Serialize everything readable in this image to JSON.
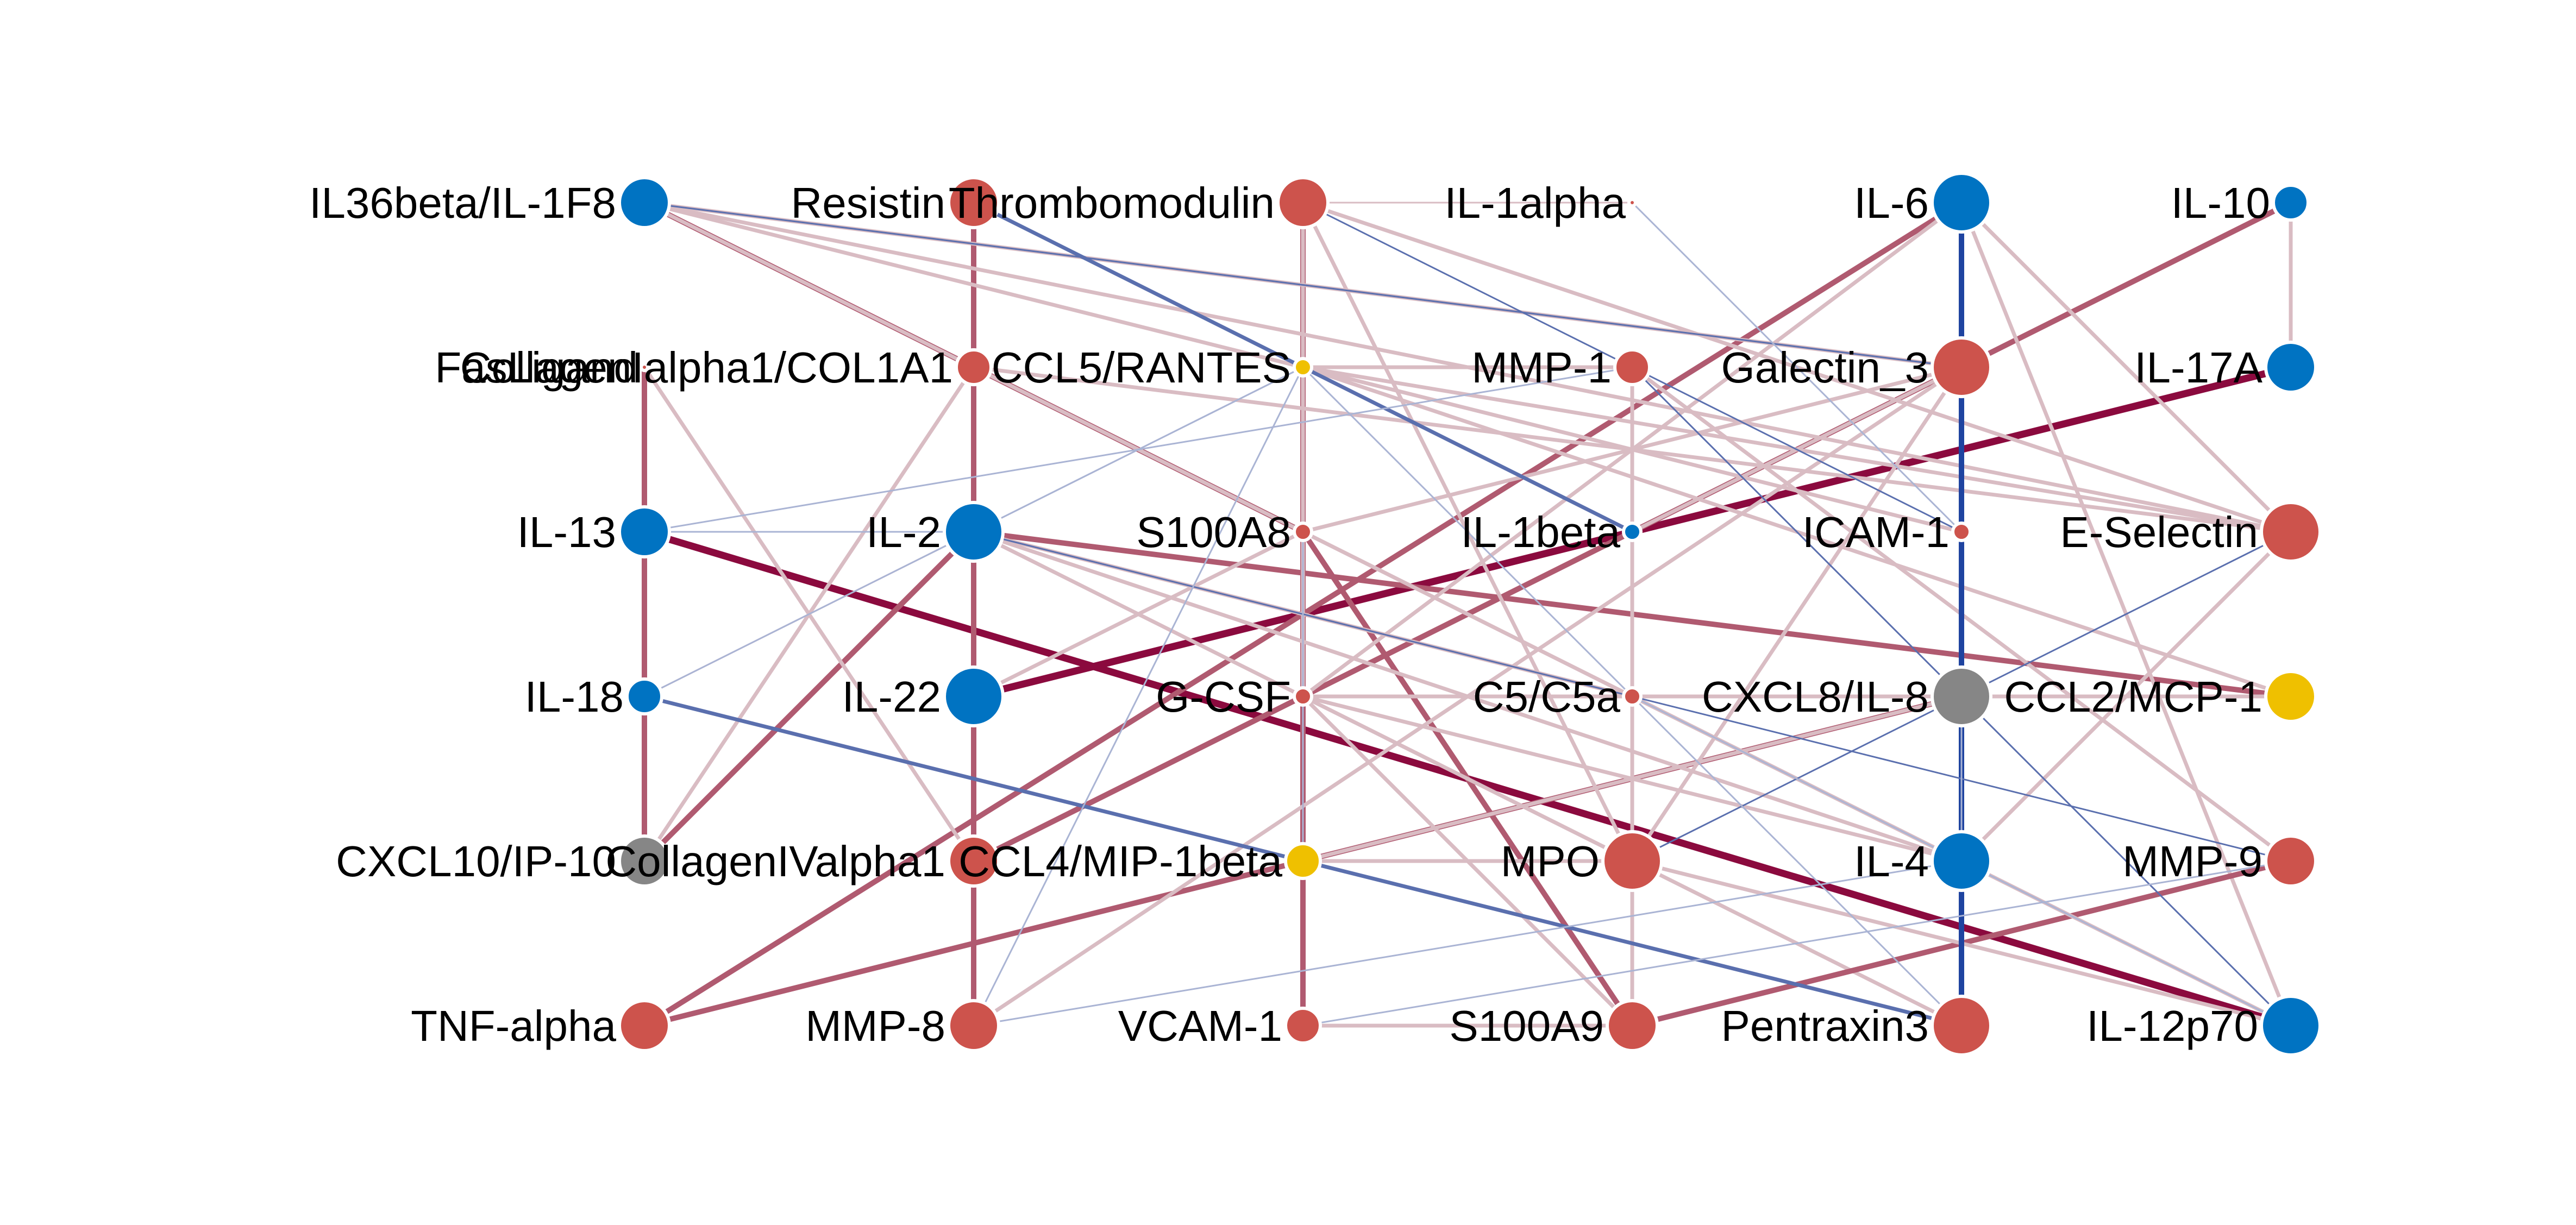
{
  "colors": {
    "positive_strong": "#8b0a3e",
    "positive_medium": "#b05a70",
    "positive_weak": "#d9bcc3",
    "negative_strong": "#1f44a0",
    "negative_medium": "#5a6fae",
    "negative_weak": "#aab4d4",
    "node_red": "#cd534c",
    "node_blue": "#0073c2",
    "node_yellow": "#efc000",
    "node_gray": "#868686"
  },
  "nodes": [
    {
      "id": "IL36beta/IL-1F8",
      "label": "IL36beta/IL-1F8",
      "col": 0,
      "row": 0,
      "color": "node_blue",
      "size": 3
    },
    {
      "id": "FasLigand",
      "label": "FasLigand",
      "col": 0,
      "row": 1,
      "color": "node_red",
      "size": 0
    },
    {
      "id": "IL-13",
      "label": "IL-13",
      "col": 0,
      "row": 2,
      "color": "node_blue",
      "size": 3
    },
    {
      "id": "IL-18",
      "label": "IL-18",
      "col": 0,
      "row": 3,
      "color": "node_blue",
      "size": 2
    },
    {
      "id": "CXCL10/IP-10",
      "label": "CXCL10/IP-10",
      "col": 0,
      "row": 4,
      "color": "node_gray",
      "size": 3
    },
    {
      "id": "TNF-alpha",
      "label": "TNF-alpha",
      "col": 0,
      "row": 5,
      "color": "node_red",
      "size": 3
    },
    {
      "id": "Resistin",
      "label": "Resistin",
      "col": 1,
      "row": 0,
      "color": "node_red",
      "size": 3
    },
    {
      "id": "CollagenIalpha1/COL1A1",
      "label": "CollagenIalpha1/COL1A1",
      "col": 1,
      "row": 1,
      "color": "node_red",
      "size": 2
    },
    {
      "id": "IL-2",
      "label": "IL-2",
      "col": 1,
      "row": 2,
      "color": "node_blue",
      "size": 4
    },
    {
      "id": "IL-22",
      "label": "IL-22",
      "col": 1,
      "row": 3,
      "color": "node_blue",
      "size": 4
    },
    {
      "id": "CollagenIValpha1",
      "label": "CollagenIValpha1",
      "col": 1,
      "row": 4,
      "color": "node_red",
      "size": 3
    },
    {
      "id": "MMP-8",
      "label": "MMP-8",
      "col": 1,
      "row": 5,
      "color": "node_red",
      "size": 3
    },
    {
      "id": "Thrombomodulin",
      "label": "Thrombomodulin",
      "col": 2,
      "row": 0,
      "color": "node_red",
      "size": 3
    },
    {
      "id": "CCL5/RANTES",
      "label": "CCL5/RANTES",
      "col": 2,
      "row": 1,
      "color": "node_yellow",
      "size": 1
    },
    {
      "id": "S100A8",
      "label": "S100A8",
      "col": 2,
      "row": 2,
      "color": "node_red",
      "size": 1
    },
    {
      "id": "G-CSF",
      "label": "G-CSF",
      "col": 2,
      "row": 3,
      "color": "node_red",
      "size": 1
    },
    {
      "id": "CCL4/MIP-1beta",
      "label": "CCL4/MIP-1beta",
      "col": 2,
      "row": 4,
      "color": "node_yellow",
      "size": 2
    },
    {
      "id": "VCAM-1",
      "label": "VCAM-1",
      "col": 2,
      "row": 5,
      "color": "node_red",
      "size": 2
    },
    {
      "id": "IL-1alpha",
      "label": "IL-1alpha",
      "col": 3,
      "row": 0,
      "color": "node_red",
      "size": 0
    },
    {
      "id": "MMP-1",
      "label": "MMP-1",
      "col": 3,
      "row": 1,
      "color": "node_red",
      "size": 2
    },
    {
      "id": "IL-1beta",
      "label": "IL-1beta",
      "col": 3,
      "row": 2,
      "color": "node_blue",
      "size": 1
    },
    {
      "id": "C5/C5a",
      "label": "C5/C5a",
      "col": 3,
      "row": 3,
      "color": "node_red",
      "size": 1
    },
    {
      "id": "MPO",
      "label": "MPO",
      "col": 3,
      "row": 4,
      "color": "node_red",
      "size": 4
    },
    {
      "id": "S100A9",
      "label": "S100A9",
      "col": 3,
      "row": 5,
      "color": "node_red",
      "size": 3
    },
    {
      "id": "IL-6",
      "label": "IL-6",
      "col": 4,
      "row": 0,
      "color": "node_blue",
      "size": 4
    },
    {
      "id": "Galectin_3",
      "label": "Galectin_3",
      "col": 4,
      "row": 1,
      "color": "node_red",
      "size": 4
    },
    {
      "id": "ICAM-1",
      "label": "ICAM-1",
      "col": 4,
      "row": 2,
      "color": "node_red",
      "size": 1
    },
    {
      "id": "CXCL8/IL-8",
      "label": "CXCL8/IL-8",
      "col": 4,
      "row": 3,
      "color": "node_gray",
      "size": 4
    },
    {
      "id": "IL-4",
      "label": "IL-4",
      "col": 4,
      "row": 4,
      "color": "node_blue",
      "size": 4
    },
    {
      "id": "Pentraxin3",
      "label": "Pentraxin3",
      "col": 4,
      "row": 5,
      "color": "node_red",
      "size": 4
    },
    {
      "id": "IL-10",
      "label": "IL-10",
      "col": 5,
      "row": 0,
      "color": "node_blue",
      "size": 2
    },
    {
      "id": "IL-17A",
      "label": "IL-17A",
      "col": 5,
      "row": 1,
      "color": "node_blue",
      "size": 3
    },
    {
      "id": "E-Selectin",
      "label": "E-Selectin",
      "col": 5,
      "row": 2,
      "color": "node_red",
      "size": 4
    },
    {
      "id": "CCL2/MCP-1",
      "label": "CCL2/MCP-1",
      "col": 5,
      "row": 3,
      "color": "node_yellow",
      "size": 3
    },
    {
      "id": "MMP-9",
      "label": "MMP-9",
      "col": 5,
      "row": 4,
      "color": "node_red",
      "size": 3
    },
    {
      "id": "IL-12p70",
      "label": "IL-12p70",
      "col": 5,
      "row": 5,
      "color": "node_blue",
      "size": 4
    }
  ],
  "edges": [
    {
      "source": "IL-13",
      "target": "IL-12p70",
      "color": "positive_strong",
      "weight": 4
    },
    {
      "source": "IL-22",
      "target": "IL-17A",
      "color": "positive_strong",
      "weight": 4
    },
    {
      "source": "Galectin_3",
      "target": "IL-10",
      "color": "positive_medium",
      "weight": 3
    },
    {
      "source": "TNF-alpha",
      "target": "IL-6",
      "color": "positive_medium",
      "weight": 3
    },
    {
      "source": "TNF-alpha",
      "target": "CXCL8/IL-8",
      "color": "positive_medium",
      "weight": 3
    },
    {
      "source": "CollagenIValpha1",
      "target": "Galectin_3",
      "color": "positive_medium",
      "weight": 3
    },
    {
      "source": "CXCL10/IP-10",
      "target": "IL-2",
      "color": "positive_medium",
      "weight": 3
    },
    {
      "source": "IL-2",
      "target": "CCL2/MCP-1",
      "color": "positive_medium",
      "weight": 3
    },
    {
      "source": "IL36beta/IL-1F8",
      "target": "S100A8",
      "color": "positive_medium",
      "weight": 3
    },
    {
      "source": "S100A8",
      "target": "S100A9",
      "color": "positive_medium",
      "weight": 3
    },
    {
      "source": "IL-2",
      "target": "IL-22",
      "color": "positive_medium",
      "weight": 3
    },
    {
      "source": "IL-22",
      "target": "CollagenIValpha1",
      "color": "positive_medium",
      "weight": 3
    },
    {
      "source": "CollagenIValpha1",
      "target": "MMP-8",
      "color": "positive_medium",
      "weight": 3
    },
    {
      "source": "Thrombomodulin",
      "target": "VCAM-1",
      "color": "positive_medium",
      "weight": 3
    },
    {
      "source": "IL-13",
      "target": "FasLigand",
      "color": "positive_medium",
      "weight": 3
    },
    {
      "source": "IL-13",
      "target": "IL-18",
      "color": "positive_medium",
      "weight": 3
    },
    {
      "source": "IL-18",
      "target": "CXCL10/IP-10",
      "color": "positive_medium",
      "weight": 3
    },
    {
      "source": "Resistin",
      "target": "CollagenIalpha1/COL1A1",
      "color": "positive_medium",
      "weight": 3
    },
    {
      "source": "CollagenIalpha1/COL1A1",
      "target": "IL-2",
      "color": "positive_medium",
      "weight": 3
    },
    {
      "source": "IL-6",
      "target": "IL-12p70",
      "color": "positive_weak",
      "weight": 2
    },
    {
      "source": "IL-10",
      "target": "IL-17A",
      "color": "positive_weak",
      "weight": 2
    },
    {
      "source": "IL36beta/IL-1F8",
      "target": "ICAM-1",
      "color": "positive_weak",
      "weight": 2
    },
    {
      "source": "IL36beta/IL-1F8",
      "target": "E-Selectin",
      "color": "positive_weak",
      "weight": 2
    },
    {
      "source": "IL36beta/IL-1F8",
      "target": "IL-4",
      "color": "positive_weak",
      "weight": 2
    },
    {
      "source": "IL36beta/IL-1F8",
      "target": "Galectin_3",
      "color": "positive_weak",
      "weight": 2
    },
    {
      "source": "Thrombomodulin",
      "target": "E-Selectin",
      "color": "positive_weak",
      "weight": 2
    },
    {
      "source": "Thrombomodulin",
      "target": "IL-1alpha",
      "color": "positive_weak",
      "weight": 1
    },
    {
      "source": "Thrombomodulin",
      "target": "MPO",
      "color": "positive_weak",
      "weight": 2
    },
    {
      "source": "Thrombomodulin",
      "target": "G-CSF",
      "color": "positive_weak",
      "weight": 2
    },
    {
      "source": "CCL5/RANTES",
      "target": "E-Selectin",
      "color": "positive_weak",
      "weight": 2
    },
    {
      "source": "CCL5/RANTES",
      "target": "CCL2/MCP-1",
      "color": "positive_weak",
      "weight": 2
    },
    {
      "source": "CCL5/RANTES",
      "target": "MMP-1",
      "color": "positive_weak",
      "weight": 2
    },
    {
      "source": "CollagenIalpha1/COL1A1",
      "target": "IL-4",
      "color": "positive_weak",
      "weight": 2
    },
    {
      "source": "CollagenIalpha1/COL1A1",
      "target": "E-Selectin",
      "color": "positive_weak",
      "weight": 2
    },
    {
      "source": "CollagenIalpha1/COL1A1",
      "target": "CXCL10/IP-10",
      "color": "positive_weak",
      "weight": 2
    },
    {
      "source": "FasLigand",
      "target": "CollagenIValpha1",
      "color": "positive_weak",
      "weight": 2
    },
    {
      "source": "IL-2",
      "target": "IL-4",
      "color": "positive_weak",
      "weight": 2
    },
    {
      "source": "IL-2",
      "target": "C5/C5a",
      "color": "positive_weak",
      "weight": 2
    },
    {
      "source": "IL-2",
      "target": "MPO",
      "color": "positive_weak",
      "weight": 2
    },
    {
      "source": "IL-2",
      "target": "IL-18",
      "color": "positive_weak",
      "weight": 1
    },
    {
      "source": "S100A8",
      "target": "IL-22",
      "color": "positive_weak",
      "weight": 2
    },
    {
      "source": "S100A8",
      "target": "Galectin_3",
      "color": "positive_weak",
      "weight": 2
    },
    {
      "source": "G-CSF",
      "target": "IL-4",
      "color": "positive_weak",
      "weight": 2
    },
    {
      "source": "G-CSF",
      "target": "CCL2/MCP-1",
      "color": "positive_weak",
      "weight": 2
    },
    {
      "source": "G-CSF",
      "target": "Pentraxin3",
      "color": "positive_weak",
      "weight": 2
    },
    {
      "source": "G-CSF",
      "target": "S100A9",
      "color": "positive_weak",
      "weight": 2
    },
    {
      "source": "G-CSF",
      "target": "IL-6",
      "color": "positive_weak",
      "weight": 2
    },
    {
      "source": "CCL4/MIP-1beta",
      "target": "MPO",
      "color": "positive_weak",
      "weight": 2
    },
    {
      "source": "CCL4/MIP-1beta",
      "target": "CXCL8/IL-8",
      "color": "positive_weak",
      "weight": 2
    },
    {
      "source": "CCL4/MIP-1beta",
      "target": "Pentraxin3",
      "color": "positive_weak",
      "weight": 1
    },
    {
      "source": "MMP-8",
      "target": "Galectin_3",
      "color": "positive_weak",
      "weight": 2
    },
    {
      "source": "VCAM-1",
      "target": "S100A9",
      "color": "positive_weak",
      "weight": 2
    },
    {
      "source": "S100A9",
      "target": "MMP-9",
      "color": "positive_medium",
      "weight": 3
    },
    {
      "source": "MMP-1",
      "target": "S100A9",
      "color": "positive_weak",
      "weight": 2
    },
    {
      "source": "MMP-1",
      "target": "MMP-9",
      "color": "positive_weak",
      "weight": 2
    },
    {
      "source": "MPO",
      "target": "IL-12p70",
      "color": "positive_weak",
      "weight": 2
    },
    {
      "source": "MPO",
      "target": "Galectin_3",
      "color": "positive_weak",
      "weight": 2
    },
    {
      "source": "C5/C5a",
      "target": "IL-4",
      "color": "positive_weak",
      "weight": 2
    },
    {
      "source": "Galectin_3",
      "target": "IL-1beta",
      "color": "positive_weak",
      "weight": 2
    },
    {
      "source": "IL-6",
      "target": "E-Selectin",
      "color": "positive_weak",
      "weight": 2
    },
    {
      "source": "IL-4",
      "target": "IL-12p70",
      "color": "positive_weak",
      "weight": 2
    },
    {
      "source": "IL-4",
      "target": "E-Selectin",
      "color": "positive_weak",
      "weight": 2
    },
    {
      "source": "IL-6",
      "target": "Pentraxin3",
      "color": "negative_strong",
      "weight": 3
    },
    {
      "source": "Resistin",
      "target": "IL-1beta",
      "color": "negative_medium",
      "weight": 2
    },
    {
      "source": "IL-18",
      "target": "Pentraxin3",
      "color": "negative_medium",
      "weight": 2
    },
    {
      "source": "IL36beta/IL-1F8",
      "target": "Galectin_3",
      "color": "negative_medium",
      "weight": 1
    },
    {
      "source": "Thrombomodulin",
      "target": "ICAM-1",
      "color": "negative_medium",
      "weight": 1
    },
    {
      "source": "IL-2",
      "target": "MMP-9",
      "color": "negative_medium",
      "weight": 1
    },
    {
      "source": "IL-2",
      "target": "CCL5/RANTES",
      "color": "negative_weak",
      "weight": 1
    },
    {
      "source": "MMP-1",
      "target": "IL-12p70",
      "color": "negative_medium",
      "weight": 1
    },
    {
      "source": "MPO",
      "target": "E-Selectin",
      "color": "negative_medium",
      "weight": 1
    },
    {
      "source": "IL-1alpha",
      "target": "ICAM-1",
      "color": "negative_weak",
      "weight": 1
    },
    {
      "source": "VCAM-1",
      "target": "MMP-9",
      "color": "negative_weak",
      "weight": 1
    },
    {
      "source": "CCL5/RANTES",
      "target": "MMP-8",
      "color": "negative_weak",
      "weight": 1
    },
    {
      "source": "CCL5/RANTES",
      "target": "IL-18",
      "color": "negative_weak",
      "weight": 1
    },
    {
      "source": "CCL5/RANTES",
      "target": "Pentraxin3",
      "color": "negative_weak",
      "weight": 1
    },
    {
      "source": "S100A8",
      "target": "CCL4/MIP-1beta",
      "color": "negative_weak",
      "weight": 1
    },
    {
      "source": "C5/C5a",
      "target": "IL-12p70",
      "color": "negative_weak",
      "weight": 1
    },
    {
      "source": "IL-4",
      "target": "CXCL8/IL-8",
      "color": "negative_weak",
      "weight": 1
    },
    {
      "source": "IL-13",
      "target": "IL-2",
      "color": "negative_weak",
      "weight": 1
    },
    {
      "source": "MMP-8",
      "target": "IL-4",
      "color": "negative_weak",
      "weight": 1
    },
    {
      "source": "MMP-1",
      "target": "IL-13",
      "color": "negative_weak",
      "weight": 1
    }
  ]
}
